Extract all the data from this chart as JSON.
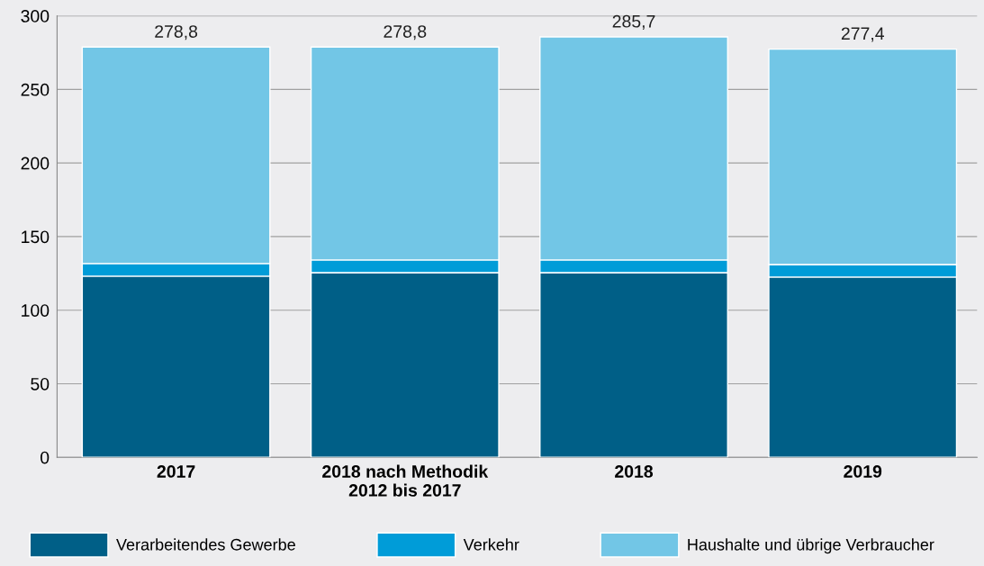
{
  "chart_data": {
    "type": "bar",
    "stacked": true,
    "categories": [
      "2017",
      "2018 nach Methodik\n2012 bis 2017",
      "2018",
      "2019"
    ],
    "series": [
      {
        "name": "Verarbeitendes Gewerbe",
        "color": "#005f87",
        "values": [
          123.1,
          125.5,
          125.5,
          122.5
        ]
      },
      {
        "name": "Verkehr",
        "color": "#009cd8",
        "values": [
          8.6,
          8.6,
          8.6,
          8.5
        ]
      },
      {
        "name": "Haushalte und übrige Verbraucher",
        "color": "#72c6e6",
        "values": [
          147.1,
          144.7,
          151.6,
          146.4
        ]
      }
    ],
    "totals": [
      "278,8",
      "278,8",
      "285,7",
      "277,4"
    ],
    "ylim": [
      0,
      300
    ],
    "yticks": [
      0,
      50,
      100,
      150,
      200,
      250,
      300
    ],
    "grid": "y",
    "legend": "bottom"
  }
}
